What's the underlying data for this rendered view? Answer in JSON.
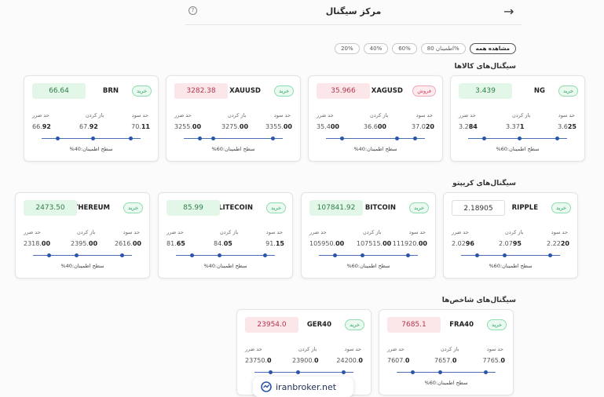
{
  "header": {
    "title": "مرکز سیگنال",
    "back_icon": "arrow-right-icon",
    "help_icon": "help-icon"
  },
  "filters": [
    {
      "label": "مشاهده همه"
    },
    {
      "label": "اطمینان 80%"
    },
    {
      "label": "60%"
    },
    {
      "label": "40%"
    },
    {
      "label": "20%"
    }
  ],
  "sections": {
    "commodities": "سیگنال‌های کالاها",
    "crypto": "سیگنال‌های کریپتو",
    "indices": "سیگنال‌های شاخص‌ها"
  },
  "labels": {
    "tp": "حد سود",
    "entry": "باز کردن",
    "sl": "حد ضرر",
    "conf_prefix": "سطح اطمینان:"
  },
  "cards": {
    "ng": {
      "symbol": "NG",
      "signal": "خرید",
      "price": "3.439",
      "tp_a": "3.6",
      "tp_b": "25",
      "en_a": "3.37",
      "en_b": "1",
      "sl_a": "3.2",
      "sl_b": "84",
      "confidence": "60%"
    },
    "xagusd": {
      "symbol": "XAGUSD",
      "signal": "فروش",
      "price": "35.966",
      "tp_a": "37.0",
      "tp_b": "20",
      "en_a": "36.6",
      "en_b": "00",
      "sl_a": "35.4",
      "sl_b": "00",
      "confidence": "40%"
    },
    "xauusd": {
      "symbol": "XAUUSD",
      "signal": "خرید",
      "price": "3282.38",
      "tp_a": "3355.",
      "tp_b": "00",
      "en_a": "3275.",
      "en_b": "00",
      "sl_a": "3255.",
      "sl_b": "00",
      "confidence": "60%"
    },
    "brn": {
      "symbol": "BRN",
      "signal": "خرید",
      "price": "66.64",
      "tp_a": "70.",
      "tp_b": "11",
      "en_a": "67.",
      "en_b": "92",
      "sl_a": "66.",
      "sl_b": "92",
      "confidence": "40%"
    },
    "ripple": {
      "symbol": "RIPPLE",
      "signal": "خرید",
      "price": "2.18905",
      "tp_a": "2.22",
      "tp_b": "20",
      "en_a": "2.07",
      "en_b": "95",
      "sl_a": "2.02",
      "sl_b": "96",
      "confidence": "60%"
    },
    "bitcoin": {
      "symbol": "BITCOIN",
      "signal": "خرید",
      "price": "107841.92",
      "tp_a": "111920.",
      "tp_b": "00",
      "en_a": "107515.",
      "en_b": "00",
      "sl_a": "105950.",
      "sl_b": "00",
      "confidence": "60%"
    },
    "litecoin": {
      "symbol": "LITECOIN",
      "signal": "خرید",
      "price": "85.99",
      "tp_a": "91.",
      "tp_b": "15",
      "en_a": "84.",
      "en_b": "05",
      "sl_a": "81.",
      "sl_b": "65",
      "confidence": "40%"
    },
    "ethereum": {
      "symbol": "ETHEREUM",
      "signal": "خرید",
      "price": "2473.50",
      "tp_a": "2616.",
      "tp_b": "00",
      "en_a": "2395.",
      "en_b": "00",
      "sl_a": "2318.",
      "sl_b": "00",
      "confidence": "40%"
    },
    "fra40": {
      "symbol": "FRA40",
      "signal": "خرید",
      "price": "7685.1",
      "tp_a": "7765.",
      "tp_b": "0",
      "en_a": "7657.",
      "en_b": "0",
      "sl_a": "7607.",
      "sl_b": "0",
      "confidence": "60%"
    },
    "ger40": {
      "symbol": "GER40",
      "signal": "خرید",
      "price": "23954.0",
      "tp_a": "24200.",
      "tp_b": "0",
      "en_a": "23900.",
      "en_b": "0",
      "sl_a": "23750.",
      "sl_b": "0",
      "confidence": ""
    }
  },
  "watermark": {
    "text": "iranbroker.net"
  }
}
